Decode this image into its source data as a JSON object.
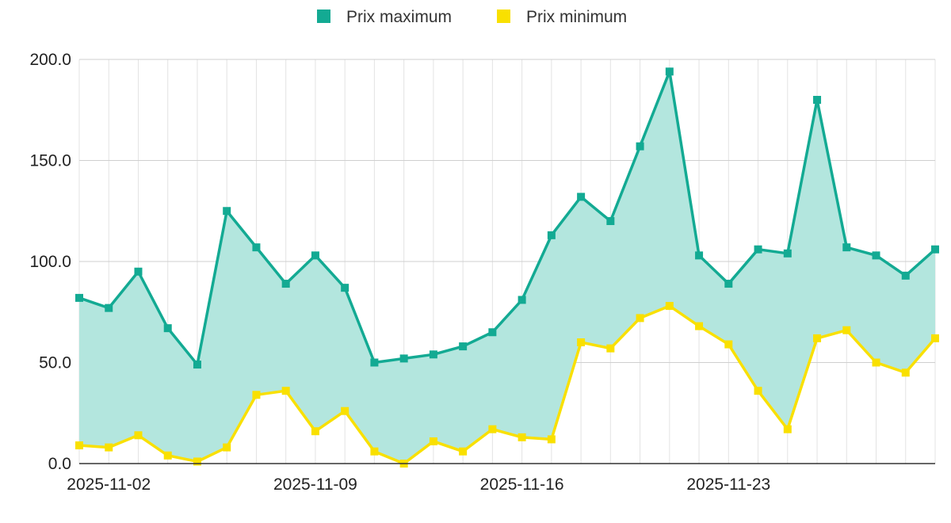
{
  "chart_data": {
    "type": "area",
    "x": [
      "2025-11-01",
      "2025-11-02",
      "2025-11-03",
      "2025-11-04",
      "2025-11-05",
      "2025-11-06",
      "2025-11-07",
      "2025-11-08",
      "2025-11-09",
      "2025-11-10",
      "2025-11-11",
      "2025-11-12",
      "2025-11-13",
      "2025-11-14",
      "2025-11-15",
      "2025-11-16",
      "2025-11-17",
      "2025-11-18",
      "2025-11-19",
      "2025-11-20",
      "2025-11-21",
      "2025-11-22",
      "2025-11-23",
      "2025-11-24",
      "2025-11-25",
      "2025-11-26",
      "2025-11-27",
      "2025-11-28",
      "2025-11-29",
      "2025-11-30"
    ],
    "x_tick_labels": [
      "2025-11-02",
      "2025-11-09",
      "2025-11-16",
      "2025-11-23"
    ],
    "y_tick_labels": [
      "200.0",
      "150.0",
      "100.0",
      "50.0",
      "0.0"
    ],
    "ylim": [
      0,
      200
    ],
    "grid": true,
    "legend_position": "top-center",
    "series": [
      {
        "name": "Prix maximum",
        "color": "#13aa93",
        "fill": "#b3e6de",
        "values": [
          82,
          77,
          95,
          67,
          49,
          125,
          107,
          89,
          103,
          87,
          50,
          52,
          54,
          58,
          65,
          81,
          113,
          132,
          120,
          157,
          194,
          103,
          89,
          106,
          104,
          180,
          107,
          103,
          93,
          106
        ]
      },
      {
        "name": "Prix minimum",
        "color": "#f9e000",
        "values": [
          9,
          8,
          14,
          4,
          1,
          8,
          34,
          36,
          16,
          26,
          6,
          0,
          11,
          6,
          17,
          13,
          12,
          60,
          57,
          72,
          78,
          68,
          59,
          36,
          17,
          62,
          66,
          50,
          45,
          62
        ]
      }
    ]
  }
}
